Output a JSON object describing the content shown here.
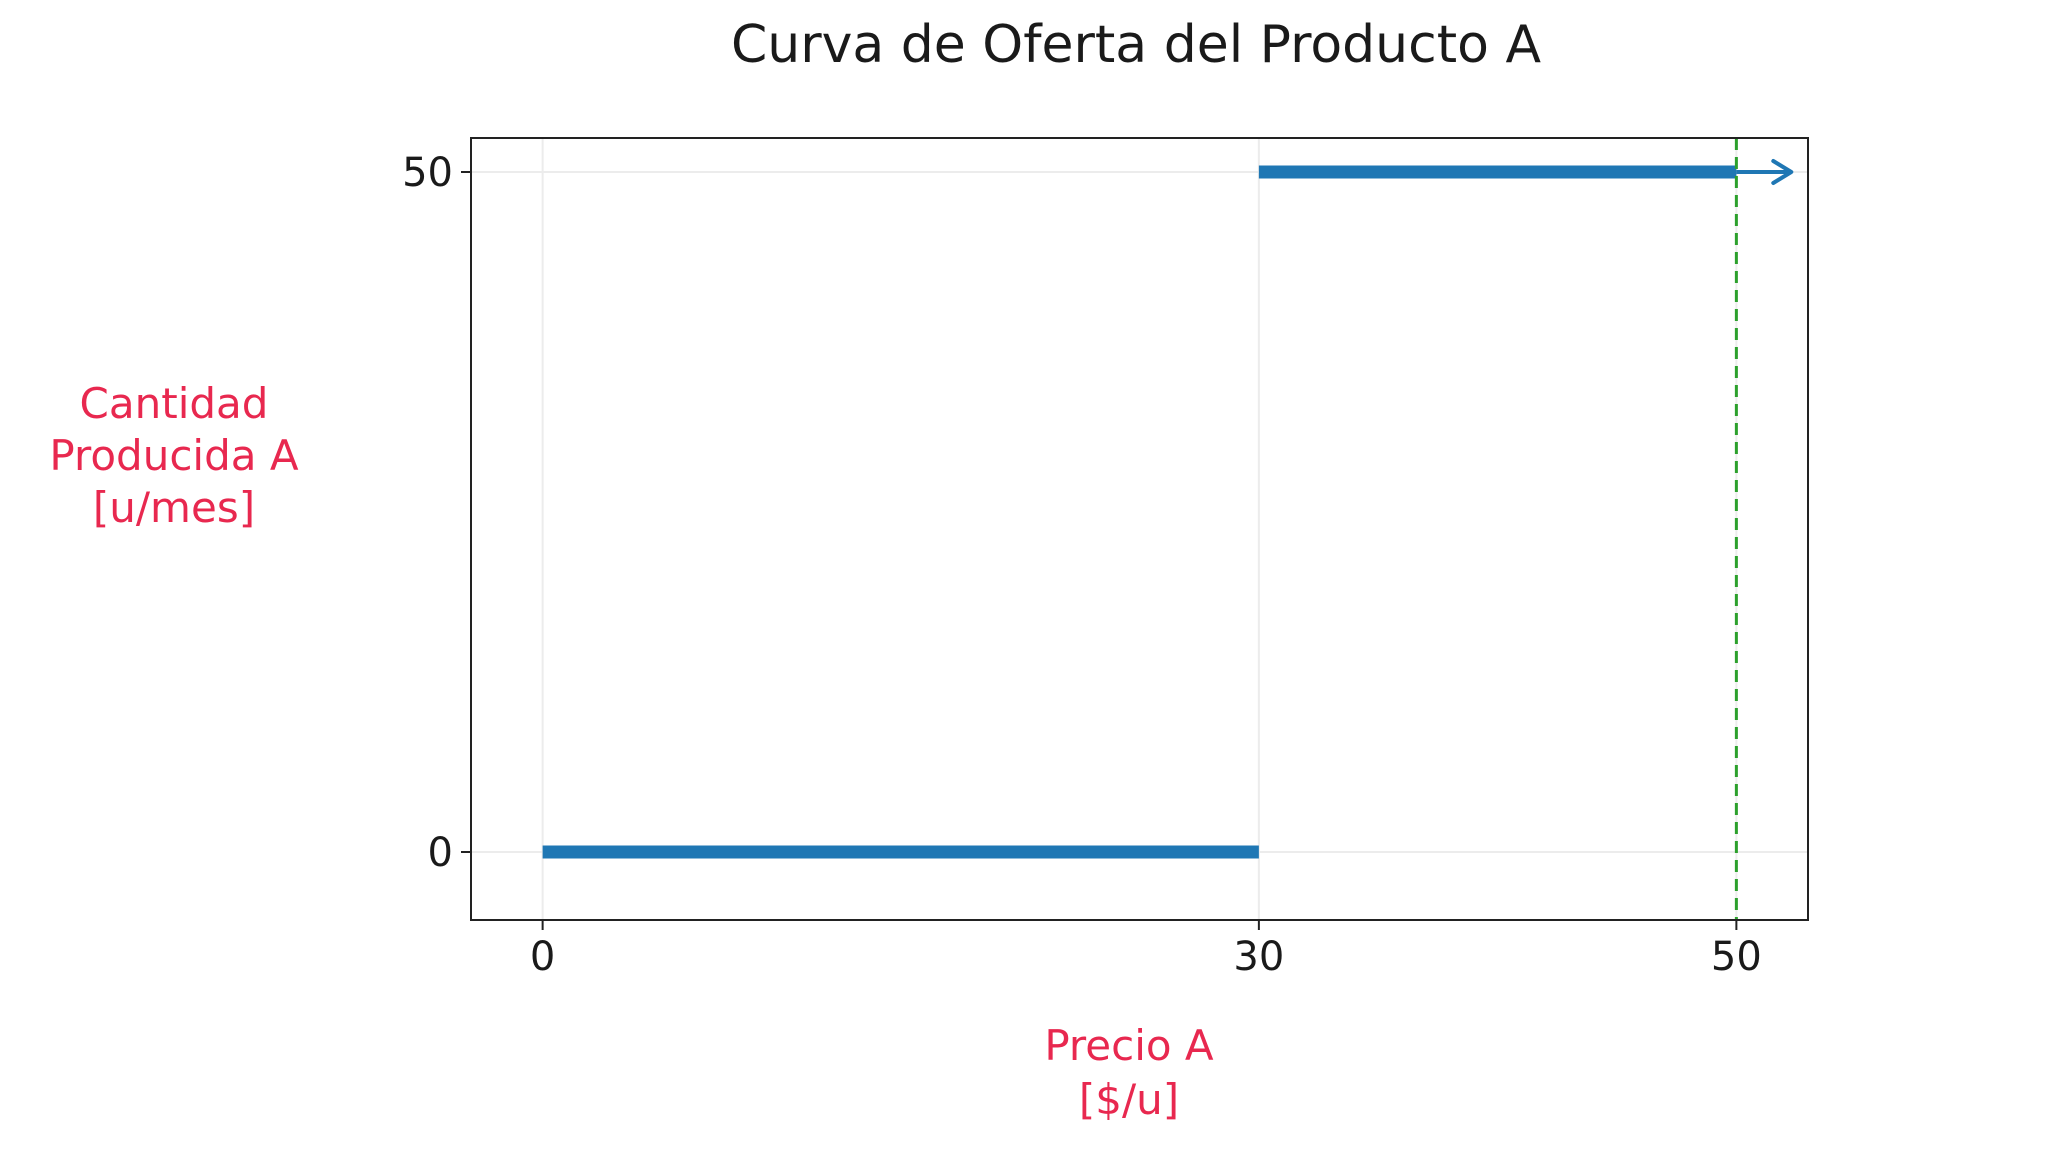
{
  "chart_data": {
    "type": "line",
    "title": "Curva de Oferta del Producto  A",
    "xlabel": [
      "Precio A",
      "[$/u]"
    ],
    "ylabel": [
      "Cantidad",
      "Producida A",
      "[u/mes]"
    ],
    "xlim": [
      -3,
      53
    ],
    "ylim": [
      -5,
      52.5
    ],
    "x_ticks": [
      0,
      30,
      50
    ],
    "y_ticks": [
      0,
      50
    ],
    "grid": true,
    "colors": {
      "series": "#1f77b4",
      "reference_line": "#2ca02c",
      "axis_label": "#e8284f",
      "grid": "#ececec"
    },
    "series": [
      {
        "segments": [
          {
            "x": [
              0,
              30
            ],
            "y": [
              0,
              0
            ]
          },
          {
            "x": [
              30,
              50
            ],
            "y": [
              50,
              50
            ]
          }
        ]
      }
    ],
    "arrows": [
      {
        "from": [
          50,
          50
        ],
        "to": [
          52.3,
          50
        ],
        "color": "#1f77b4"
      }
    ],
    "vlines": [
      {
        "x": 50,
        "style": "dashed",
        "color": "#2ca02c"
      }
    ]
  }
}
